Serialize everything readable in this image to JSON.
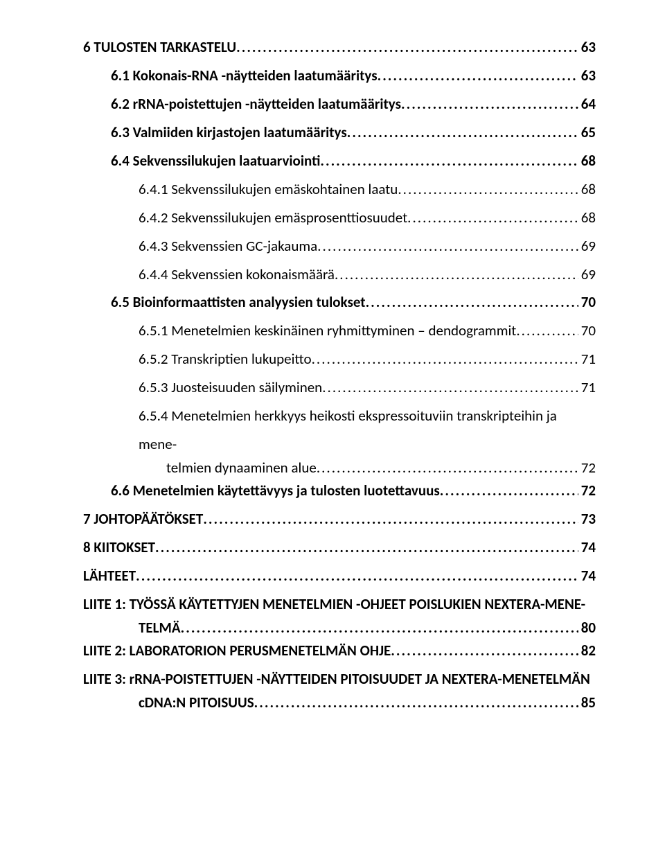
{
  "toc": [
    {
      "level": "lvl0",
      "label": "6 TULOSTEN TARKASTELU",
      "page": "63"
    },
    {
      "level": "lvl1",
      "label": "6.1 Kokonais-RNA -näytteiden laatumääritys",
      "page": "63"
    },
    {
      "level": "lvl1",
      "label": "6.2 rRNA-poistettujen -näytteiden laatumääritys",
      "page": "64"
    },
    {
      "level": "lvl1",
      "label": "6.3 Valmiiden kirjastojen laatumääritys",
      "page": "65"
    },
    {
      "level": "lvl1",
      "label": "6.4 Sekvenssilukujen laatuarviointi",
      "page": "68"
    },
    {
      "level": "lvl2",
      "label": "6.4.1 Sekvenssilukujen emäskohtainen laatu",
      "page": "68"
    },
    {
      "level": "lvl2",
      "label": "6.4.2 Sekvenssilukujen emäsprosenttiosuudet",
      "page": "68"
    },
    {
      "level": "lvl2",
      "label": "6.4.3 Sekvenssien GC-jakauma",
      "page": "69"
    },
    {
      "level": "lvl2",
      "label": "6.4.4 Sekvenssien kokonaismäärä",
      "page": "69"
    },
    {
      "level": "lvl1",
      "label": "6.5 Bioinformaattisten analyysien tulokset",
      "page": "70"
    },
    {
      "level": "lvl2",
      "label": "6.5.1 Menetelmien keskinäinen ryhmittyminen – dendogrammit",
      "page": "70"
    },
    {
      "level": "lvl2",
      "label": "6.5.2 Transkriptien lukupeitto",
      "page": "71"
    },
    {
      "level": "lvl2",
      "label": "6.5.3 Juosteisuuden säilyminen",
      "page": "71"
    }
  ],
  "entry654": {
    "line1": "6.5.4 Menetelmien herkkyys heikosti ekspressoituviin transkripteihin ja mene-",
    "line2": "telmien dynaaminen alue",
    "page": "72"
  },
  "toc2": [
    {
      "level": "lvl1",
      "label": "6.6 Menetelmien käytettävyys ja tulosten luotettavuus",
      "page": "72"
    },
    {
      "level": "lvl0",
      "label": "7 JOHTOPÄÄTÖKSET",
      "page": "73"
    },
    {
      "level": "lvl0",
      "label": "8 KIITOKSET",
      "page": "74"
    },
    {
      "level": "lvl0",
      "label": "LÄHTEET",
      "page": "74"
    }
  ],
  "liite1": {
    "line1": "LIITE 1: TYÖSSÄ KÄYTETTYJEN MENETELMIEN -OHJEET POISLUKIEN NEXTERA-MENE-",
    "line2": "TELMÄ",
    "page": "80"
  },
  "liite2": {
    "label": "LIITE 2: LABORATORION PERUSMENETELMÄN OHJE",
    "page": "82"
  },
  "liite3": {
    "line1": "LIITE 3: rRNA-POISTETTUJEN -NÄYTTEIDEN PITOISUUDET JA NEXTERA-MENETELMÄN",
    "line2": "cDNA:N PITOISUUS",
    "page": "85"
  }
}
